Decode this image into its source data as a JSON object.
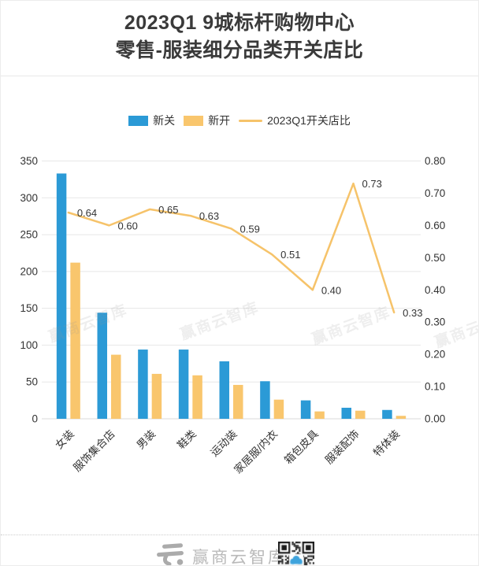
{
  "header": {
    "title_line1": "2023Q1 9城标杆购物中心",
    "title_line2": "零售-服装细分品类开关店比"
  },
  "legend": {
    "items": [
      {
        "label": "新关",
        "swatch": "rect",
        "color": "#2B9AD6"
      },
      {
        "label": "新开",
        "swatch": "rect",
        "color": "#F9C66D"
      },
      {
        "label": "2023Q1开关店比",
        "swatch": "line",
        "color": "#F6C36A"
      }
    ]
  },
  "chart_data": {
    "type": "combo-bar-line",
    "title": "2023Q1 9城标杆购物中心 零售-服装细分品类开关店比",
    "categories": [
      "女装",
      "服饰集合店",
      "男装",
      "鞋类",
      "运动装",
      "家居服/内衣",
      "箱包皮具",
      "服装配饰",
      "特体装"
    ],
    "bar_series": [
      {
        "name": "新关",
        "color": "#2B9AD6",
        "values": [
          333,
          144,
          94,
          94,
          78,
          51,
          25,
          15,
          12
        ]
      },
      {
        "name": "新开",
        "color": "#F9C66D",
        "values": [
          212,
          87,
          61,
          59,
          46,
          26,
          10,
          11,
          4
        ]
      }
    ],
    "line_series": {
      "name": "2023Q1开关店比",
      "color": "#F6C36A",
      "values": [
        0.64,
        0.6,
        0.65,
        0.63,
        0.59,
        0.51,
        0.4,
        0.73,
        0.33
      ],
      "labels": [
        "0.64",
        "0.60",
        "0.65",
        "0.63",
        "0.59",
        "0.51",
        "0.40",
        "0.73",
        "0.33"
      ]
    },
    "left_axis": {
      "min": 0,
      "max": 350,
      "step": 50,
      "ticks": [
        "0",
        "50",
        "100",
        "150",
        "200",
        "250",
        "300",
        "350"
      ]
    },
    "right_axis": {
      "min": 0,
      "max": 0.8,
      "step": 0.1,
      "ticks": [
        "0.00",
        "0.10",
        "0.20",
        "0.30",
        "0.40",
        "0.50",
        "0.60",
        "0.70",
        "0.80"
      ]
    },
    "grid": true,
    "legend_position": "top"
  },
  "watermark": {
    "text": "赢商云智库"
  },
  "footer": {
    "brand": "赢商云智库"
  }
}
